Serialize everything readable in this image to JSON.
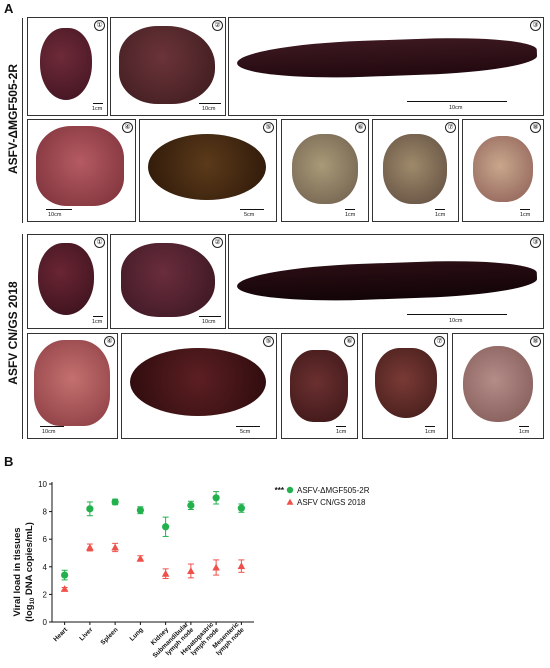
{
  "panel_a": {
    "letter": "A",
    "group_top": {
      "label": "ASFV-ΔMGF505-2R",
      "tiles": [
        {
          "n": "①",
          "scale": "1cm"
        },
        {
          "n": "②",
          "scale": "10cm"
        },
        {
          "n": "③",
          "scale": "10cm"
        },
        {
          "n": "④",
          "scale": "10cm"
        },
        {
          "n": "⑤",
          "scale": "5cm"
        },
        {
          "n": "⑥",
          "scale": "1cm"
        },
        {
          "n": "⑦",
          "scale": "1cm"
        },
        {
          "n": "⑧",
          "scale": "1cm"
        }
      ]
    },
    "group_bottom": {
      "label": "ASFV CN/GS 2018",
      "tiles": [
        {
          "n": "①",
          "scale": "1cm"
        },
        {
          "n": "②",
          "scale": "10cm"
        },
        {
          "n": "③",
          "scale": "10cm"
        },
        {
          "n": "④",
          "scale": "10cm"
        },
        {
          "n": "⑤",
          "scale": "5cm"
        },
        {
          "n": "⑥",
          "scale": "1cm"
        },
        {
          "n": "⑦",
          "scale": "1cm"
        },
        {
          "n": "⑧",
          "scale": "1cm"
        }
      ]
    }
  },
  "panel_b": {
    "letter": "B"
  },
  "chart_data": {
    "type": "scatter",
    "ylabel_line1": "Viral load in tissues",
    "ylabel_line2": "(log",
    "ylabel_sub": "10",
    "ylabel_line2b": " DNA copies/mL)",
    "ylim": [
      0,
      10
    ],
    "yticks": [
      "0",
      "2",
      "4",
      "6",
      "8",
      "10"
    ],
    "categories": [
      "Heart",
      "Liver",
      "Spleen",
      "Lung",
      "Kidney",
      "Submandibular lymph node",
      "Hepatogastric lymph node",
      "Mesenteric lymph node"
    ],
    "category_lines": [
      [
        "Heart"
      ],
      [
        "Liver"
      ],
      [
        "Spleen"
      ],
      [
        "Lung"
      ],
      [
        "Kidney"
      ],
      [
        "Submandibular",
        "lymph node"
      ],
      [
        "Hepatogastric",
        "lymph node"
      ],
      [
        "Mesenteric",
        "lymph node"
      ]
    ],
    "significance": "***",
    "legend_position": "top-right",
    "series": [
      {
        "name": "ASFV-ΔMGF505-2R",
        "marker": "circle",
        "color": "#22b14c",
        "values": [
          3.4,
          8.2,
          8.7,
          8.1,
          6.9,
          8.45,
          9.0,
          8.25
        ],
        "err": [
          0.35,
          0.5,
          0.2,
          0.25,
          0.7,
          0.3,
          0.45,
          0.3
        ]
      },
      {
        "name": "ASFV CN/GS 2018",
        "marker": "triangle",
        "color": "#f0504a",
        "values": [
          2.4,
          5.4,
          5.4,
          4.6,
          3.5,
          3.7,
          3.95,
          4.05
        ],
        "err": [
          0.1,
          0.25,
          0.3,
          0.2,
          0.35,
          0.5,
          0.55,
          0.45
        ]
      }
    ]
  }
}
